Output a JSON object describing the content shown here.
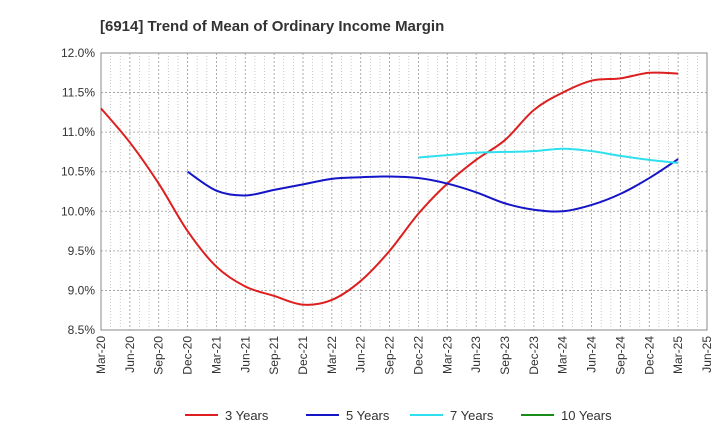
{
  "chart_data": {
    "type": "line",
    "title": "[6914]  Trend of Mean of Ordinary Income Margin",
    "xlabel": "",
    "ylabel": "",
    "x_ticks": [
      "Mar-20",
      "Jun-20",
      "Sep-20",
      "Dec-20",
      "Mar-21",
      "Jun-21",
      "Sep-21",
      "Dec-21",
      "Mar-22",
      "Jun-22",
      "Sep-22",
      "Dec-22",
      "Mar-23",
      "Jun-23",
      "Sep-23",
      "Dec-23",
      "Mar-24",
      "Jun-24",
      "Sep-24",
      "Dec-24",
      "Mar-25",
      "Jun-25"
    ],
    "y_ticks": [
      "8.5%",
      "9.0%",
      "9.5%",
      "10.0%",
      "10.5%",
      "11.0%",
      "11.5%",
      "12.0%"
    ],
    "ylim": [
      8.5,
      12.0
    ],
    "grid": true,
    "legend_position": "bottom",
    "series": [
      {
        "name": "3 Years",
        "color": "#dd1f1f",
        "x": [
          "Mar-20",
          "Jun-20",
          "Sep-20",
          "Dec-20",
          "Mar-21",
          "Jun-21",
          "Sep-21",
          "Dec-21",
          "Mar-22",
          "Jun-22",
          "Sep-22",
          "Dec-22",
          "Mar-23",
          "Jun-23",
          "Sep-23",
          "Dec-23",
          "Mar-24",
          "Jun-24",
          "Sep-24",
          "Dec-24",
          "Mar-25"
        ],
        "values": [
          11.3,
          10.87,
          10.35,
          9.75,
          9.3,
          9.05,
          8.93,
          8.82,
          8.88,
          9.12,
          9.5,
          9.97,
          10.35,
          10.65,
          10.9,
          11.28,
          11.5,
          11.65,
          11.68,
          11.75,
          11.74
        ]
      },
      {
        "name": "5 Years",
        "color": "#1515c8",
        "x": [
          "Dec-20",
          "Mar-21",
          "Jun-21",
          "Sep-21",
          "Dec-21",
          "Mar-22",
          "Jun-22",
          "Sep-22",
          "Dec-22",
          "Mar-23",
          "Jun-23",
          "Sep-23",
          "Dec-23",
          "Mar-24",
          "Jun-24",
          "Sep-24",
          "Dec-24",
          "Mar-25"
        ],
        "values": [
          10.5,
          10.26,
          10.2,
          10.27,
          10.34,
          10.41,
          10.43,
          10.44,
          10.42,
          10.35,
          10.24,
          10.1,
          10.02,
          10.0,
          10.08,
          10.22,
          10.42,
          10.66
        ]
      },
      {
        "name": "7 Years",
        "color": "#2ee0ee",
        "x": [
          "Dec-22",
          "Mar-23",
          "Jun-23",
          "Sep-23",
          "Dec-23",
          "Mar-24",
          "Jun-24",
          "Sep-24",
          "Dec-24",
          "Mar-25"
        ],
        "values": [
          10.68,
          10.71,
          10.74,
          10.75,
          10.76,
          10.79,
          10.76,
          10.7,
          10.65,
          10.61
        ]
      },
      {
        "name": "10 Years",
        "color": "#1a8c1a",
        "x": [],
        "values": []
      }
    ]
  }
}
